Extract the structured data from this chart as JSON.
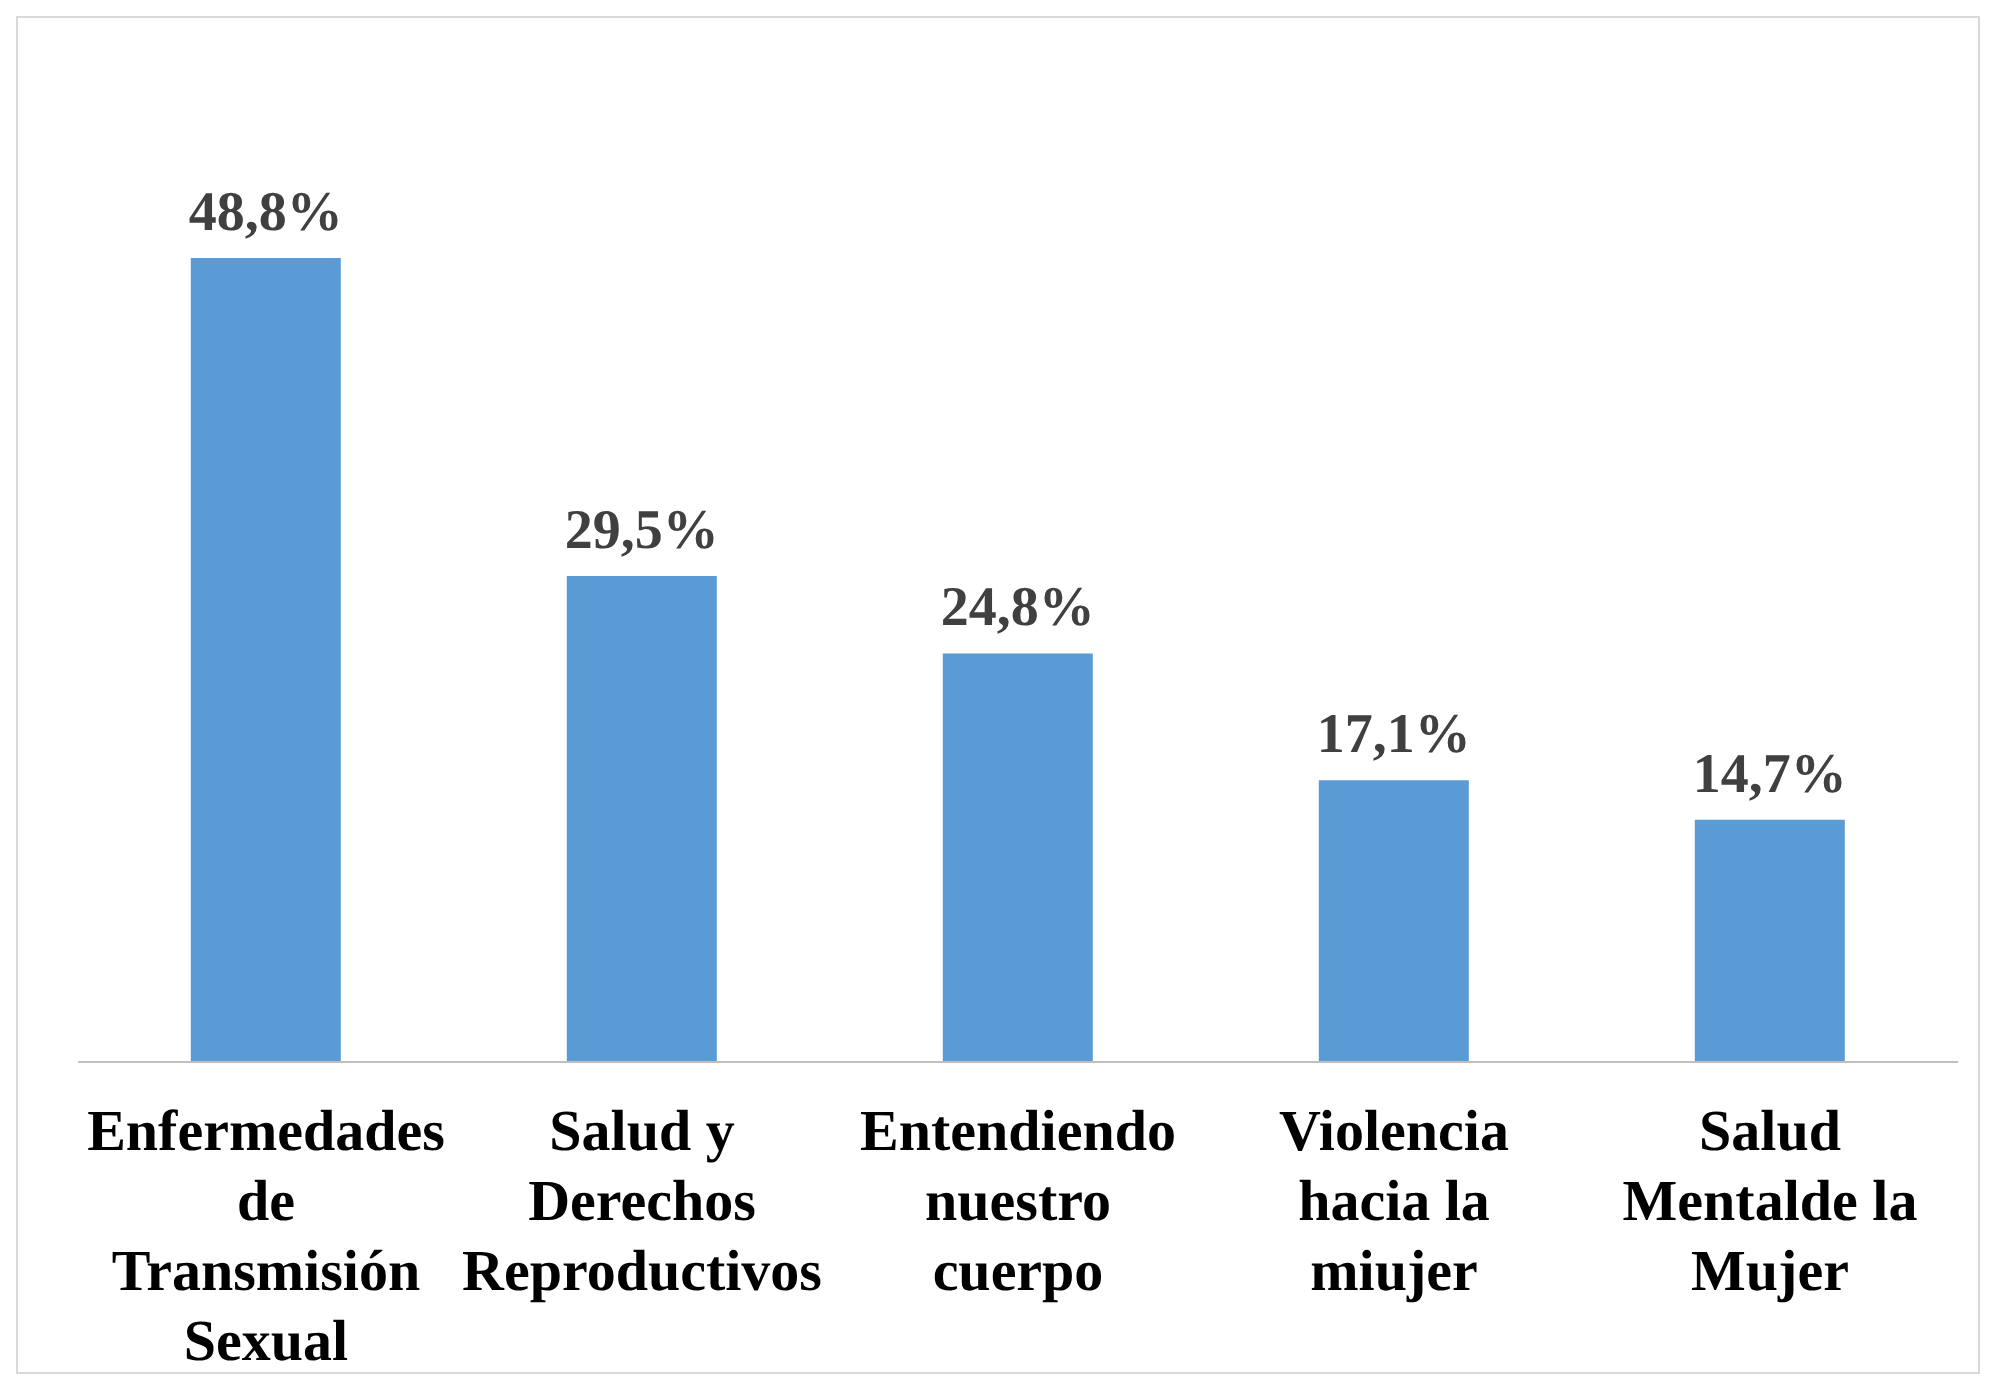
{
  "chart_data": {
    "type": "bar",
    "categories": [
      "Enfermedades de Transmisión Sexual",
      "Salud y Derechos Reproductivos",
      "Entendiendo nuestro cuerpo",
      "Violencia hacia la miujer",
      "Salud Mentalde la Mujer"
    ],
    "values": [
      48.8,
      29.5,
      24.8,
      17.1,
      14.7
    ],
    "value_labels": [
      "48,8%",
      "29,5%",
      "24,8%",
      "17,1%",
      "14,7%"
    ],
    "color": "#5b9bd5"
  }
}
